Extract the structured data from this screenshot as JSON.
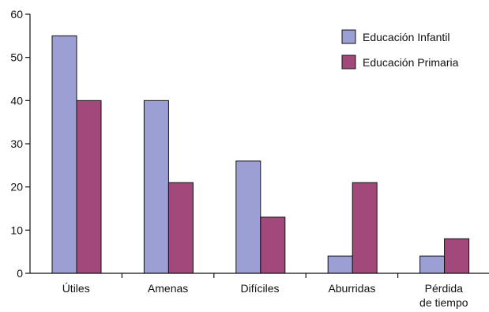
{
  "chart_data": {
    "type": "bar",
    "title": "",
    "xlabel": "",
    "ylabel": "",
    "categories": [
      [
        "Útiles"
      ],
      [
        "Amenas"
      ],
      [
        "Difíciles"
      ],
      [
        "Aburridas"
      ],
      [
        "Pérdida",
        "de tiempo"
      ]
    ],
    "series": [
      {
        "name": "Educación Infantil",
        "color": "#9b9fd4",
        "values": [
          55,
          40,
          26,
          4,
          4
        ]
      },
      {
        "name": "Educación Primaria",
        "color": "#a0497a",
        "values": [
          40,
          21,
          13,
          21,
          8
        ]
      }
    ],
    "ylim": [
      0,
      60
    ],
    "yticks": [
      0,
      10,
      20,
      30,
      40,
      50,
      60
    ],
    "grid": false,
    "legend_position": "top-right"
  }
}
